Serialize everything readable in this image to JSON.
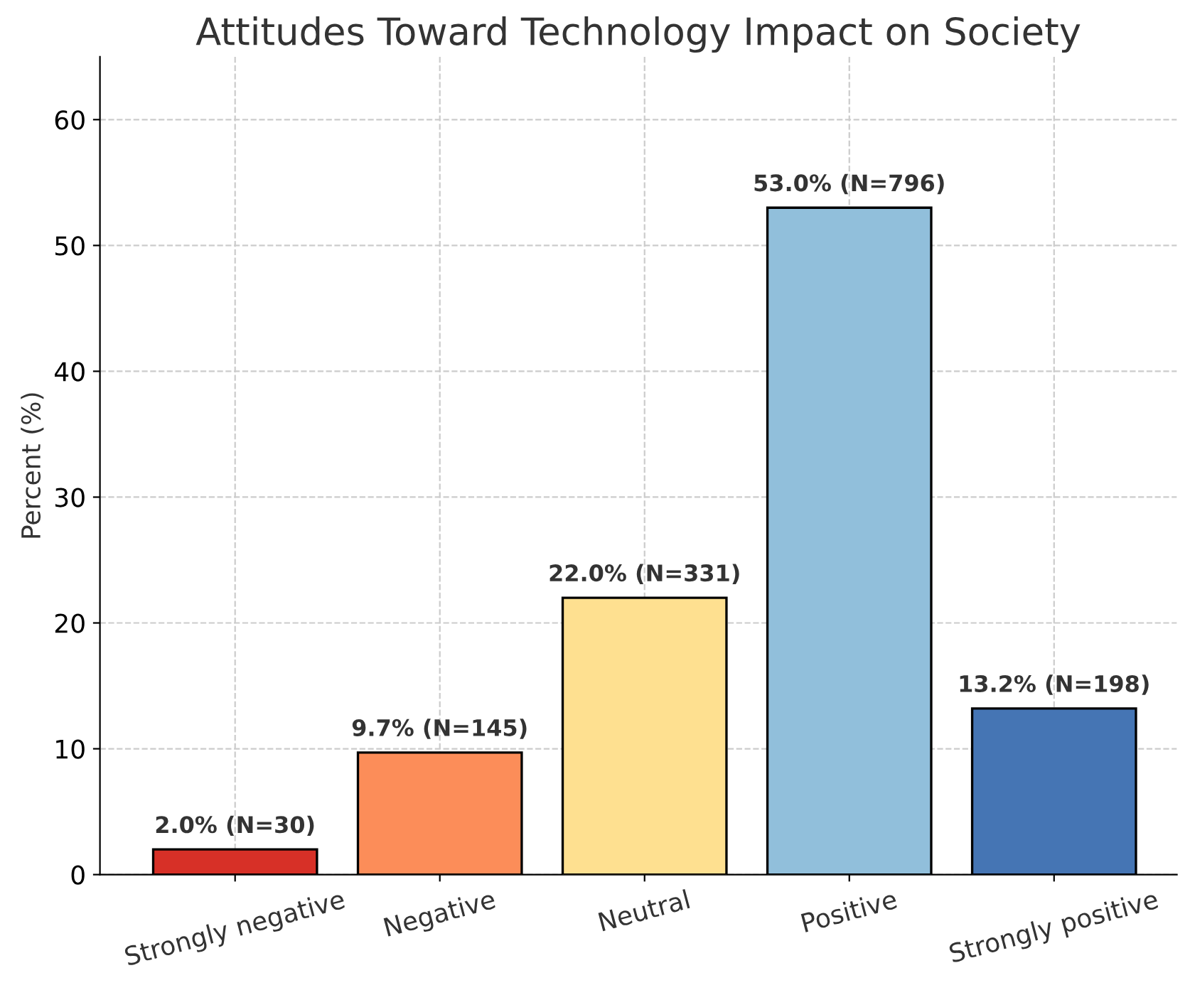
{
  "chart_data": {
    "type": "bar",
    "title": "Attitudes Toward Technology Impact on Society",
    "ylabel": "Percent (%)",
    "categories": [
      "Strongly negative",
      "Negative",
      "Neutral",
      "Positive",
      "Strongly positive"
    ],
    "values": [
      2.0,
      9.7,
      22.0,
      53.0,
      13.2
    ],
    "colors": [
      "#d73027",
      "#fc8d59",
      "#fee090",
      "#91bfdb",
      "#4575b4"
    ],
    "value_labels": [
      "2.0% (N=30)",
      "9.7% (N=145)",
      "22.0% (N=331)",
      "53.0% (N=796)",
      "13.2% (N=198)"
    ],
    "ylim": [
      0,
      65
    ],
    "yticks": [
      0,
      10,
      20,
      30,
      40,
      50,
      60
    ],
    "grid": true
  }
}
